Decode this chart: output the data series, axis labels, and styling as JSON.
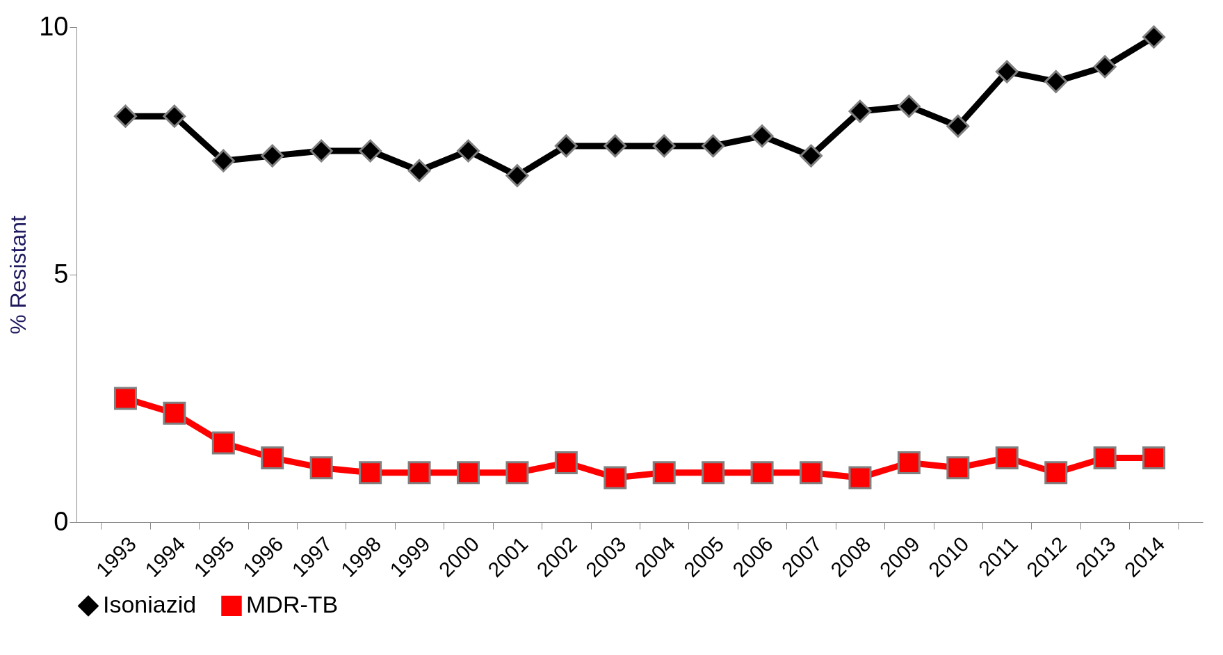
{
  "chart_data": {
    "type": "line",
    "ylabel": "% Resistant",
    "categories": [
      "1993",
      "1994",
      "1995",
      "1996",
      "1997",
      "1998",
      "1999",
      "2000",
      "2001",
      "2002",
      "2003",
      "2004",
      "2005",
      "2006",
      "2007",
      "2008",
      "2009",
      "2010",
      "2011",
      "2012",
      "2013",
      "2014"
    ],
    "series": [
      {
        "name": "Isoniazid",
        "color": "#000000",
        "marker": "diamond",
        "values": [
          8.2,
          8.2,
          7.3,
          7.4,
          7.5,
          7.5,
          7.1,
          7.5,
          7.0,
          7.6,
          7.6,
          7.6,
          7.6,
          7.8,
          7.4,
          8.3,
          8.4,
          8.0,
          9.1,
          8.9,
          9.2,
          9.8
        ]
      },
      {
        "name": "MDR-TB",
        "color": "#ff0000",
        "marker": "square",
        "values": [
          2.5,
          2.2,
          1.6,
          1.3,
          1.1,
          1.0,
          1.0,
          1.0,
          1.0,
          1.2,
          0.9,
          1.0,
          1.0,
          1.0,
          1.0,
          0.9,
          1.2,
          1.1,
          1.3,
          1.0,
          1.3,
          1.3
        ]
      }
    ],
    "ylim": [
      0,
      10
    ],
    "yticks": [
      0,
      5,
      10
    ],
    "grid": false,
    "legend": "bottom"
  }
}
